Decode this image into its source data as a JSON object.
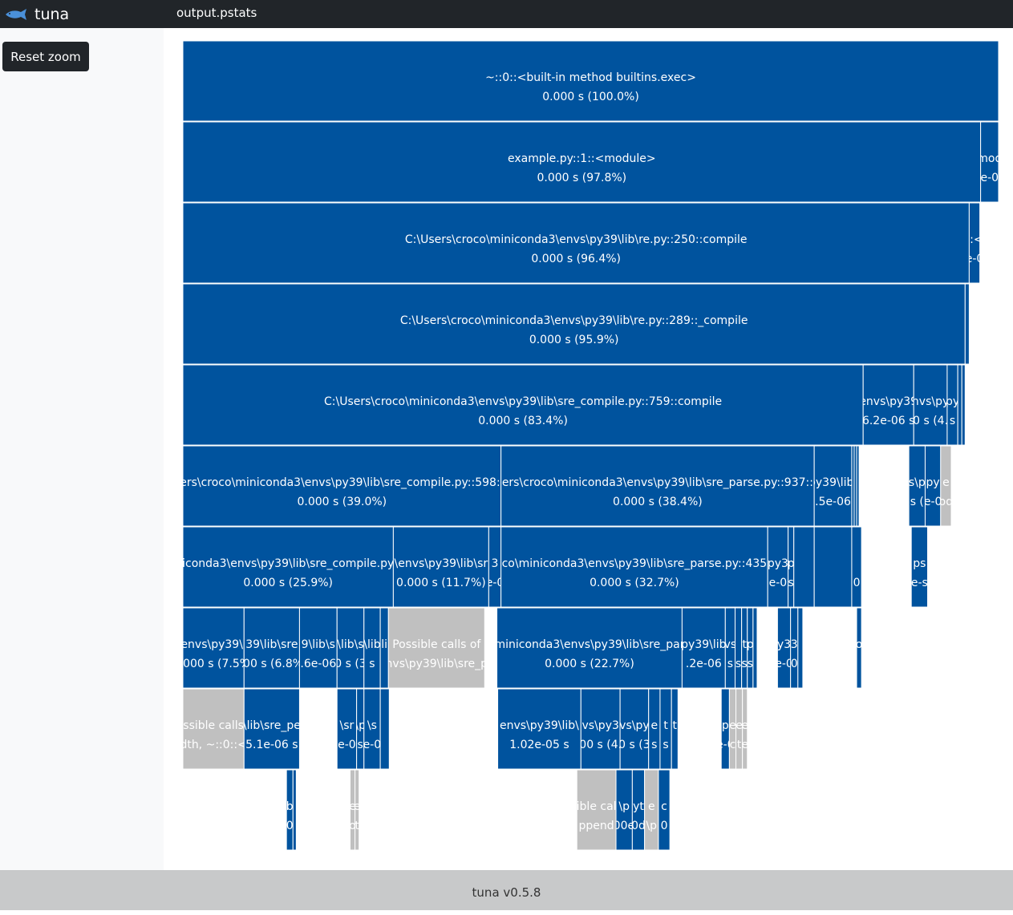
{
  "app": {
    "name": "tuna",
    "file": "output.pstats",
    "footer": "tuna v0.5.8",
    "reset_zoom_label": "Reset zoom"
  },
  "colors": {
    "navbar": "#212529",
    "block": "#00539e",
    "placeholder": "#c0c0c0",
    "sidebar": "#f8f9fa",
    "footer": "#c8c9ca"
  },
  "icons": {
    "brand": "tuna-fish-icon"
  },
  "flame": {
    "levels": [
      [
        {
          "label": "~::0::<built-in method builtins.exec>",
          "value": "0.000 s (100.0%)",
          "share": 1.0
        }
      ],
      [
        {
          "label": "example.py::1::<module>",
          "value": "0.000 s (97.8%)",
          "share": 0.978
        },
        {
          "label": "mod",
          "value": "e-0",
          "share": 0.022
        }
      ],
      [
        {
          "label": "C:\\Users\\croco\\miniconda3\\envs\\py39\\lib\\re.py::250::compile",
          "value": "0.000 s (96.4%)",
          "share": 0.964
        },
        {
          "label": "::<",
          "value": "e-0",
          "share": 0.013
        }
      ],
      [
        {
          "label": "C:\\Users\\croco\\miniconda3\\envs\\py39\\lib\\re.py::289::_compile",
          "value": "0.000 s (95.9%)",
          "share": 0.959
        },
        {
          "label": "",
          "value": "",
          "share": 0.005
        }
      ],
      [
        {
          "label": "C:\\Users\\croco\\miniconda3\\envs\\py39\\lib\\sre_compile.py::759::compile",
          "value": "0.000 s (83.4%)",
          "share": 0.834
        },
        {
          "label": "envs\\py39",
          "value": "6.2e-06 s",
          "share": 0.062
        },
        {
          "label": "nvs\\py",
          "value": "0 s (4.",
          "share": 0.041
        },
        {
          "label": "py",
          "value": "s",
          "share": 0.013
        },
        {
          "label": "",
          "value": "",
          "share": 0.005
        },
        {
          "label": "",
          "value": "",
          "share": 0.004
        }
      ],
      [
        {
          "label": "ers\\croco\\miniconda3\\envs\\py39\\lib\\sre_compile.py::598::",
          "value": "0.000 s (39.0%)",
          "share": 0.39
        },
        {
          "label": "ers\\croco\\miniconda3\\envs\\py39\\lib\\sre_parse.py::937::",
          "value": "0.000 s (38.4%)",
          "share": 0.384
        },
        {
          "label": "py39\\lib\\",
          "value": ".5e-06",
          "share": 0.046
        },
        {
          "label": "",
          "value": "",
          "share": 0.003
        },
        {
          "label": "",
          "value": "",
          "share": 0.003
        },
        {
          "label": "",
          "value": "",
          "share": 0.003
        },
        {
          "label": "vs\\py",
          "value": "s (",
          "share": 0.02,
          "gap": 0.061
        },
        {
          "label": "py",
          "value": "e-0",
          "share": 0.019
        },
        {
          "label": "e",
          "value": "od",
          "share": 0.013,
          "placeholder": true
        }
      ],
      [
        {
          "label": "iconda3\\envs\\py39\\lib\\sre_compile.py",
          "value": "0.000 s (25.9%)",
          "share": 0.258
        },
        {
          "label": "\\envs\\py39\\lib\\sr",
          "value": "0.000 s (11.7%)",
          "share": 0.117
        },
        {
          "label": "3",
          "value": "e-0",
          "share": 0.015
        },
        {
          "label": "co\\miniconda3\\envs\\py39\\lib\\sre_parse.py::435",
          "value": "0.000 s (32.7%)",
          "share": 0.327
        },
        {
          "label": "py3",
          "value": "e-0",
          "share": 0.025
        },
        {
          "label": "p",
          "value": "s",
          "share": 0.007
        },
        {
          "label": "",
          "value": "",
          "share": 0.025
        },
        {
          "label": "",
          "value": "",
          "share": 0.046
        },
        {
          "label": "",
          "value": "0",
          "share": 0.012
        },
        {
          "label": "ps",
          "value": "e-s",
          "share": 0.02,
          "gap": 0.061
        }
      ],
      [
        {
          "label": "envs\\py39\\l",
          "value": "0.000 s (7.5%)",
          "share": 0.075
        },
        {
          "label": "39\\lib\\sre",
          "value": "000 s (6.8%)",
          "share": 0.068
        },
        {
          "label": "9\\lib\\s",
          "value": ".6e-06",
          "share": 0.046
        },
        {
          "label": "\\lib\\s",
          "value": "0 s (3",
          "share": 0.033
        },
        {
          "label": "\\lib",
          "value": "s",
          "share": 0.02
        },
        {
          "label": "li",
          "value": "",
          "share": 0.01
        },
        {
          "label": "Possible calls of",
          "value": "nvs\\py39\\lib\\sre_p",
          "share": 0.118,
          "placeholder": true
        },
        {
          "label": "miniconda3\\envs\\py39\\lib\\sre_par",
          "value": "0.000 s (22.7%)",
          "share": 0.227,
          "gap": 0.015
        },
        {
          "label": "py39\\lib",
          "value": ".2e-06",
          "share": 0.053
        },
        {
          "label": "vs",
          "value": "s",
          "share": 0.012
        },
        {
          "label": "",
          "value": "s",
          "share": 0.008
        },
        {
          "label": "t",
          "value": "s",
          "share": 0.007
        },
        {
          "label": "p",
          "value": "s",
          "share": 0.007
        },
        {
          "label": "",
          "value": "",
          "share": 0.005
        },
        {
          "label": "y3",
          "value": "e-0",
          "share": 0.016,
          "gap": 0.025
        },
        {
          "label": "3",
          "value": "0",
          "share": 0.009
        },
        {
          "label": "",
          "value": "",
          "share": 0.006
        },
        {
          "label": "o",
          "value": "",
          "share": 0.006,
          "gap": 0.066
        }
      ],
      [
        {
          "label": "ssible calls",
          "value": "dth, ~::0::<",
          "share": 0.075,
          "placeholder": true
        },
        {
          "label": "\\lib\\sre_pe",
          "value": "5.1e-06 s",
          "share": 0.068
        },
        {
          "label": "\\sr",
          "value": "e-0",
          "share": 0.024,
          "gap": 0.046
        },
        {
          "label": "\\p",
          "value": "s",
          "share": 0.009
        },
        {
          "label": "\\s",
          "value": "e-0",
          "share": 0.02
        },
        {
          "label": "",
          "value": "",
          "share": 0.011
        },
        {
          "label": "envs\\py39\\lib\\",
          "value": "1.02e-05 s",
          "share": 0.102,
          "gap": 0.133
        },
        {
          "label": "vs\\py3",
          "value": "00 s (4.",
          "share": 0.048
        },
        {
          "label": "nvs\\py3",
          "value": "0 s (3",
          "share": 0.035
        },
        {
          "label": "e",
          "value": "s",
          "share": 0.014
        },
        {
          "label": "t",
          "value": "s",
          "share": 0.014
        },
        {
          "label": "t",
          "value": "",
          "share": 0.008
        },
        {
          "label": "p",
          "value": "e-0",
          "share": 0.01,
          "gap": 0.053
        },
        {
          "label": "e",
          "value": "c",
          "share": 0.008,
          "placeholder": true
        },
        {
          "label": "e",
          "value": "t",
          "share": 0.008,
          "placeholder": true
        },
        {
          "label": "e",
          "value": "e",
          "share": 0.006,
          "placeholder": true
        }
      ],
      [
        {
          "label": "b",
          "value": "0",
          "share": 0.008,
          "gap": 0.127
        },
        {
          "label": "",
          "value": "",
          "share": 0.004
        },
        {
          "label": "e",
          "value": "o",
          "share": 0.006,
          "gap": 0.066,
          "placeholder": true
        },
        {
          "label": "e",
          "value": "t",
          "share": 0.005,
          "placeholder": true
        },
        {
          "label": "ible cal",
          "value": "ppend",
          "share": 0.048,
          "gap": 0.267,
          "placeholder": true
        },
        {
          "label": "\\p",
          "value": ".00e-",
          "share": 0.02
        },
        {
          "label": "yt",
          "value": "0d",
          "share": 0.015
        },
        {
          "label": "e",
          "value": "\\p",
          "share": 0.017,
          "placeholder": true
        },
        {
          "label": "c",
          "value": "0",
          "share": 0.014
        }
      ]
    ]
  }
}
